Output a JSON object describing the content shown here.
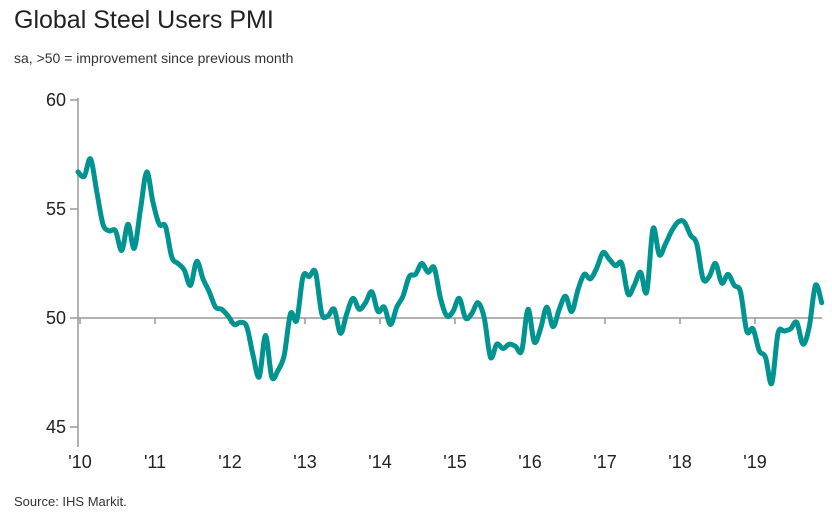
{
  "chart_data": {
    "type": "line",
    "title": "Global Steel Users PMI",
    "subtitle": "sa, >50 = improvement since previous month",
    "source": "Source: IHS Markit.",
    "xlabel": "",
    "ylabel": "",
    "ylim": [
      45,
      60
    ],
    "yticks": [
      45,
      50,
      55,
      60
    ],
    "reference_line": 50,
    "xtick_labels": [
      "'10",
      "'11",
      "'12",
      "'13",
      "'14",
      "'15",
      "'16",
      "'17",
      "'18",
      "'19"
    ],
    "x_start": "2010-01",
    "frequency": "monthly",
    "line_color": "#009490",
    "series": [
      {
        "name": "Global Steel Users PMI",
        "values": [
          56.7,
          56.5,
          57.3,
          55.8,
          54.3,
          54.0,
          54.0,
          53.1,
          54.3,
          53.2,
          55.0,
          56.7,
          55.3,
          54.3,
          54.2,
          52.8,
          52.5,
          52.2,
          51.5,
          52.6,
          51.8,
          51.2,
          50.5,
          50.4,
          50.1,
          49.7,
          49.8,
          49.6,
          48.3,
          47.3,
          49.2,
          47.3,
          47.6,
          48.3,
          50.2,
          49.9,
          51.9,
          51.9,
          52.1,
          50.2,
          50.1,
          50.4,
          49.3,
          50.2,
          50.9,
          50.4,
          50.7,
          51.2,
          50.3,
          50.5,
          49.7,
          50.5,
          51.0,
          51.9,
          52.0,
          52.5,
          52.1,
          52.3,
          50.9,
          50.1,
          50.3,
          50.9,
          50.0,
          50.2,
          50.7,
          50.0,
          48.2,
          48.8,
          48.6,
          48.8,
          48.7,
          48.5,
          50.4,
          48.9,
          49.5,
          50.5,
          49.6,
          50.4,
          51.0,
          50.3,
          51.3,
          52.0,
          51.8,
          52.3,
          53.0,
          52.7,
          52.4,
          52.5,
          51.1,
          51.5,
          52.1,
          51.2,
          54.1,
          52.9,
          53.4,
          54.0,
          54.4,
          54.4,
          53.8,
          53.4,
          51.8,
          51.9,
          52.5,
          51.6,
          52.0,
          51.5,
          51.2,
          49.4,
          49.5,
          48.5,
          48.2,
          47.0,
          49.3,
          49.4,
          49.5,
          49.8,
          48.8,
          49.6,
          51.5,
          50.7
        ]
      }
    ]
  }
}
